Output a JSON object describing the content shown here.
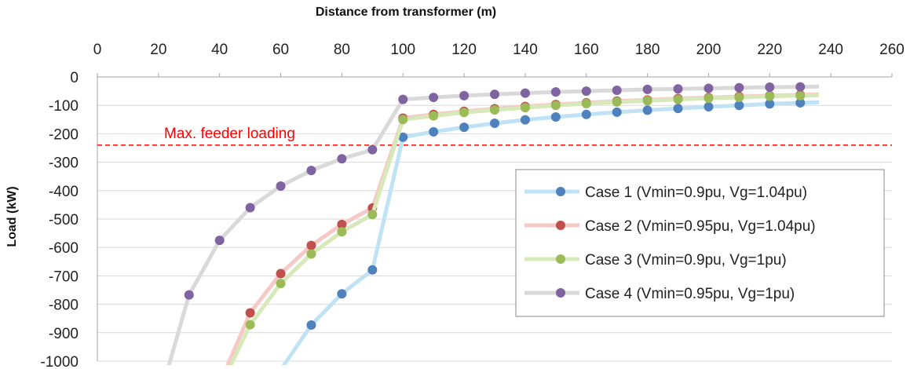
{
  "chart_data": {
    "type": "line",
    "title": "",
    "xlabel": "Distance from transformer (m)",
    "ylabel": "Load (kW)",
    "xlim": [
      0,
      260
    ],
    "ylim": [
      -1000,
      0
    ],
    "x_ticks": [
      0,
      20,
      40,
      60,
      80,
      100,
      120,
      140,
      160,
      180,
      200,
      220,
      240,
      260
    ],
    "y_ticks": [
      0,
      -100,
      -200,
      -300,
      -400,
      -500,
      -600,
      -700,
      -800,
      -900,
      -1000
    ],
    "x_axis_position": "top",
    "grid": "horizontal",
    "legend_position": "right",
    "series": [
      {
        "name": "Case 1 (Vmin=0.9pu, Vg=1.04pu)",
        "line_color": "#bfe3f5",
        "marker_color": "#4f81bd",
        "points": [
          [
            60,
            -1030
          ],
          [
            70,
            -873
          ],
          [
            80,
            -763
          ],
          [
            90,
            -679
          ],
          [
            100,
            -212
          ],
          [
            110,
            -193
          ],
          [
            120,
            -177
          ],
          [
            130,
            -163
          ],
          [
            140,
            -151
          ],
          [
            150,
            -141
          ],
          [
            160,
            -132
          ],
          [
            170,
            -124
          ],
          [
            180,
            -117
          ],
          [
            190,
            -111
          ],
          [
            200,
            -105
          ],
          [
            210,
            -100
          ],
          [
            220,
            -95
          ],
          [
            230,
            -91
          ],
          [
            240,
            -88
          ]
        ]
      },
      {
        "name": "Case 2 (Vmin=0.95pu, Vg=1.04pu)",
        "line_color": "#f6c8c6",
        "marker_color": "#c0504d",
        "points": [
          [
            42,
            -1030
          ],
          [
            50,
            -830
          ],
          [
            60,
            -692
          ],
          [
            70,
            -593
          ],
          [
            80,
            -519
          ],
          [
            90,
            -461
          ],
          [
            100,
            -145
          ],
          [
            110,
            -132
          ],
          [
            120,
            -121
          ],
          [
            130,
            -112
          ],
          [
            140,
            -104
          ],
          [
            150,
            -97
          ],
          [
            160,
            -91
          ],
          [
            170,
            -85
          ],
          [
            180,
            -81
          ],
          [
            190,
            -76
          ],
          [
            200,
            -73
          ],
          [
            210,
            -69
          ],
          [
            220,
            -66
          ],
          [
            230,
            -63
          ],
          [
            240,
            -61
          ]
        ]
      },
      {
        "name": "Case 3 (Vmin=0.9pu, Vg=1pu)",
        "line_color": "#d7e9b9",
        "marker_color": "#9bbb59",
        "points": [
          [
            43,
            -1030
          ],
          [
            50,
            -872
          ],
          [
            60,
            -727
          ],
          [
            70,
            -623
          ],
          [
            80,
            -545
          ],
          [
            90,
            -484
          ],
          [
            100,
            -150
          ],
          [
            110,
            -137
          ],
          [
            120,
            -125
          ],
          [
            130,
            -116
          ],
          [
            140,
            -108
          ],
          [
            150,
            -100
          ],
          [
            160,
            -94
          ],
          [
            170,
            -88
          ],
          [
            180,
            -84
          ],
          [
            190,
            -79
          ],
          [
            200,
            -75
          ],
          [
            210,
            -72
          ],
          [
            220,
            -68
          ],
          [
            230,
            -66
          ],
          [
            240,
            -63
          ]
        ]
      },
      {
        "name": "Case 4 (Vmin=0.95pu, Vg=1pu)",
        "line_color": "#d9d9d9",
        "marker_color": "#8064a2",
        "points": [
          [
            23,
            -1030
          ],
          [
            30,
            -767
          ],
          [
            40,
            -575
          ],
          [
            50,
            -460
          ],
          [
            60,
            -384
          ],
          [
            70,
            -329
          ],
          [
            80,
            -288
          ],
          [
            90,
            -256
          ],
          [
            100,
            -79
          ],
          [
            110,
            -72
          ],
          [
            120,
            -66
          ],
          [
            130,
            -61
          ],
          [
            140,
            -57
          ],
          [
            150,
            -53
          ],
          [
            160,
            -50
          ],
          [
            170,
            -47
          ],
          [
            180,
            -44
          ],
          [
            190,
            -42
          ],
          [
            200,
            -40
          ],
          [
            210,
            -38
          ],
          [
            220,
            -36
          ],
          [
            230,
            -35
          ],
          [
            240,
            -33
          ]
        ]
      }
    ],
    "annotations": [
      {
        "text": "Max. feeder loading",
        "y": -240,
        "color": "#ff0000",
        "style": "dashed"
      }
    ]
  }
}
